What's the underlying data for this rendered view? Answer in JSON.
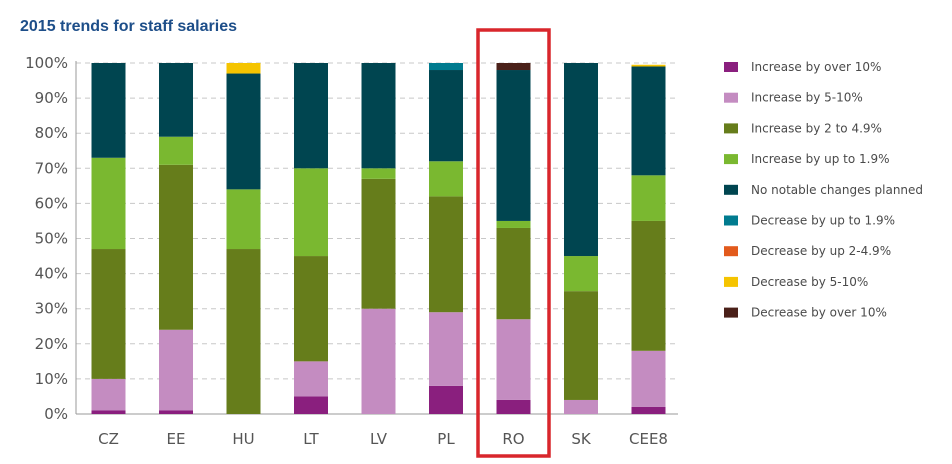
{
  "chart_data": {
    "type": "bar",
    "stacked": true,
    "title": "2015 trends for staff salaries",
    "categories": [
      "CZ",
      "EE",
      "HU",
      "LT",
      "LV",
      "PL",
      "RO",
      "SK",
      "CEE8"
    ],
    "ylim": [
      0,
      100
    ],
    "yticks": [
      "0%",
      "10%",
      "20%",
      "30%",
      "40%",
      "50%",
      "60%",
      "70%",
      "80%",
      "90%",
      "100%"
    ],
    "grid": true,
    "legend_position": "right",
    "highlighted_category": "RO",
    "highlight_color": "#d9262c",
    "series": [
      {
        "name": "Increase by over 10%",
        "color": "#8a1f7e",
        "values": [
          1,
          1,
          0,
          5,
          0,
          8,
          4,
          0,
          2
        ]
      },
      {
        "name": "Increase by 5-10%",
        "color": "#c48cc1",
        "values": [
          9,
          23,
          0,
          10,
          30,
          21,
          23,
          4,
          16
        ]
      },
      {
        "name": "Increase by 2 to 4.9%",
        "color": "#667d1b",
        "values": [
          37,
          47,
          47,
          30,
          37,
          33,
          26,
          31,
          37
        ]
      },
      {
        "name": "Increase by up to 1.9%",
        "color": "#7ab830",
        "values": [
          26,
          8,
          17,
          25,
          3,
          10,
          2,
          10,
          13
        ]
      },
      {
        "name": "No notable changes planned",
        "color": "#004550",
        "values": [
          27,
          21,
          33,
          30,
          30,
          26,
          43,
          55,
          31
        ]
      },
      {
        "name": "Decrease by up to 1.9%",
        "color": "#007b8f",
        "values": [
          0,
          0,
          0,
          0,
          0,
          2,
          0,
          0,
          0
        ]
      },
      {
        "name": "Decrease by up 2-4.9%",
        "color": "#e25a1c",
        "values": [
          0,
          0,
          0,
          0,
          0,
          0,
          0,
          0,
          0
        ]
      },
      {
        "name": "Decrease by 5-10%",
        "color": "#f5c400",
        "values": [
          0,
          0,
          3,
          0,
          0,
          0,
          0,
          0,
          0.5
        ]
      },
      {
        "name": "Decrease by over 10%",
        "color": "#4a2019",
        "values": [
          0,
          0,
          0,
          0,
          0,
          0,
          2,
          0,
          0
        ]
      }
    ]
  }
}
